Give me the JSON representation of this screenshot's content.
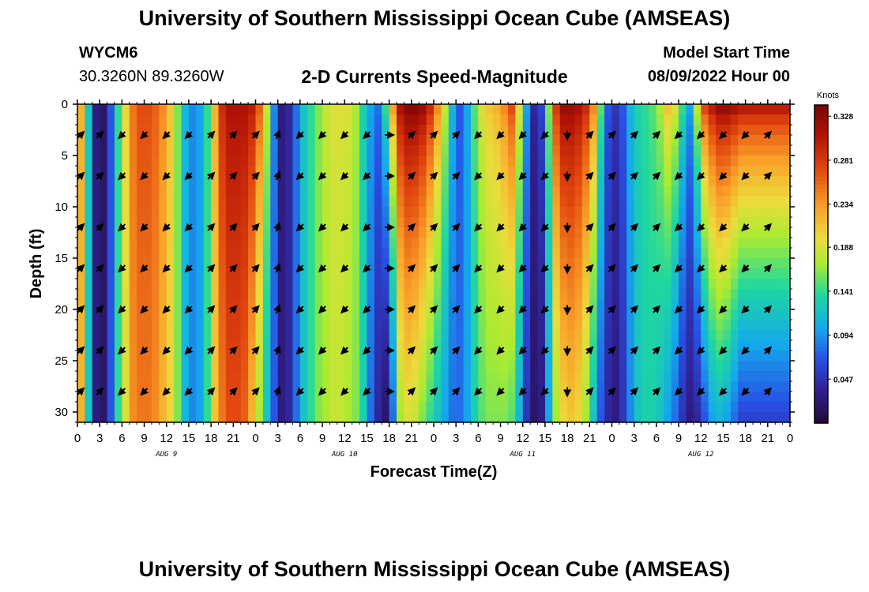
{
  "header": {
    "title": "University of Southern Mississippi Ocean Cube (AMSEAS)",
    "station": "WYCM6",
    "coords": "30.3260N  89.3260W",
    "subtitle": "2-D Currents Speed-Magnitude",
    "start_label": "Model Start Time",
    "start_value": "08/09/2022 Hour 00"
  },
  "footer": {
    "title": "University of Southern Mississippi Ocean Cube (AMSEAS)"
  },
  "chart_data": {
    "type": "heatmap",
    "title": "2-D Currents Speed-Magnitude",
    "xlabel": "Forecast Time(Z)",
    "ylabel": "Depth (ft)",
    "x_range_hours": [
      0,
      96
    ],
    "ylim": [
      0,
      31
    ],
    "x_tick_labels": [
      "0",
      "3",
      "6",
      "9",
      "12",
      "15",
      "18",
      "21",
      "0",
      "3",
      "6",
      "9",
      "12",
      "15",
      "18",
      "21",
      "0",
      "3",
      "6",
      "9",
      "12",
      "15",
      "18",
      "21",
      "0",
      "3",
      "6",
      "9",
      "12",
      "15",
      "18",
      "21",
      "0"
    ],
    "y_ticks": [
      0,
      5,
      10,
      15,
      20,
      25,
      30
    ],
    "y_tick_labels": [
      "0",
      "5",
      "10",
      "15",
      "20",
      "25",
      "30"
    ],
    "day_labels": [
      {
        "label": "AUG 9",
        "hour": 12
      },
      {
        "label": "AUG 10",
        "hour": 36
      },
      {
        "label": "AUG 11",
        "hour": 60
      },
      {
        "label": "AUG 12",
        "hour": 84
      }
    ],
    "colorbar": {
      "unit": "Knots",
      "min": 0.0,
      "max": 0.34,
      "ticks": [
        "0.328",
        "0.281",
        "0.234",
        "0.188",
        "0.141",
        "0.094",
        "0.047"
      ],
      "tick_values": [
        0.328,
        0.281,
        0.234,
        0.188,
        0.141,
        0.094,
        0.047
      ]
    },
    "speed_profile": [
      {
        "hour": 0,
        "surface": 0.22,
        "bottom": 0.22
      },
      {
        "hour": 1,
        "surface": 0.12,
        "bottom": 0.12
      },
      {
        "hour": 2,
        "surface": 0.03,
        "bottom": 0.03
      },
      {
        "hour": 3,
        "surface": 0.02,
        "bottom": 0.02
      },
      {
        "hour": 4,
        "surface": 0.07,
        "bottom": 0.07
      },
      {
        "hour": 5,
        "surface": 0.14,
        "bottom": 0.14
      },
      {
        "hour": 6,
        "surface": 0.2,
        "bottom": 0.19
      },
      {
        "hour": 7,
        "surface": 0.25,
        "bottom": 0.24
      },
      {
        "hour": 8,
        "surface": 0.27,
        "bottom": 0.25
      },
      {
        "hour": 9,
        "surface": 0.27,
        "bottom": 0.25
      },
      {
        "hour": 10,
        "surface": 0.26,
        "bottom": 0.24
      },
      {
        "hour": 11,
        "surface": 0.24,
        "bottom": 0.22
      },
      {
        "hour": 12,
        "surface": 0.21,
        "bottom": 0.2
      },
      {
        "hour": 13,
        "surface": 0.16,
        "bottom": 0.16
      },
      {
        "hour": 14,
        "surface": 0.11,
        "bottom": 0.11
      },
      {
        "hour": 15,
        "surface": 0.09,
        "bottom": 0.09
      },
      {
        "hour": 16,
        "surface": 0.1,
        "bottom": 0.1
      },
      {
        "hour": 17,
        "surface": 0.14,
        "bottom": 0.14
      },
      {
        "hour": 18,
        "surface": 0.22,
        "bottom": 0.21
      },
      {
        "hour": 19,
        "surface": 0.29,
        "bottom": 0.25
      },
      {
        "hour": 20,
        "surface": 0.31,
        "bottom": 0.27
      },
      {
        "hour": 21,
        "surface": 0.31,
        "bottom": 0.27
      },
      {
        "hour": 22,
        "surface": 0.31,
        "bottom": 0.26
      },
      {
        "hour": 23,
        "surface": 0.3,
        "bottom": 0.22
      },
      {
        "hour": 24,
        "surface": 0.26,
        "bottom": 0.17
      },
      {
        "hour": 25,
        "surface": 0.18,
        "bottom": 0.12
      },
      {
        "hour": 26,
        "surface": 0.09,
        "bottom": 0.07
      },
      {
        "hour": 27,
        "surface": 0.03,
        "bottom": 0.03
      },
      {
        "hour": 28,
        "surface": 0.04,
        "bottom": 0.04
      },
      {
        "hour": 29,
        "surface": 0.08,
        "bottom": 0.08
      },
      {
        "hour": 30,
        "surface": 0.12,
        "bottom": 0.12
      },
      {
        "hour": 31,
        "surface": 0.14,
        "bottom": 0.14
      },
      {
        "hour": 32,
        "surface": 0.16,
        "bottom": 0.16
      },
      {
        "hour": 33,
        "surface": 0.18,
        "bottom": 0.17
      },
      {
        "hour": 34,
        "surface": 0.19,
        "bottom": 0.18
      },
      {
        "hour": 35,
        "surface": 0.19,
        "bottom": 0.18
      },
      {
        "hour": 36,
        "surface": 0.19,
        "bottom": 0.17
      },
      {
        "hour": 37,
        "surface": 0.17,
        "bottom": 0.16
      },
      {
        "hour": 38,
        "surface": 0.13,
        "bottom": 0.13
      },
      {
        "hour": 39,
        "surface": 0.1,
        "bottom": 0.08
      },
      {
        "hour": 40,
        "surface": 0.08,
        "bottom": 0.04
      },
      {
        "hour": 41,
        "surface": 0.14,
        "bottom": 0.02
      },
      {
        "hour": 42,
        "surface": 0.23,
        "bottom": 0.08
      },
      {
        "hour": 43,
        "surface": 0.31,
        "bottom": 0.17
      },
      {
        "hour": 44,
        "surface": 0.33,
        "bottom": 0.19
      },
      {
        "hour": 45,
        "surface": 0.33,
        "bottom": 0.18
      },
      {
        "hour": 46,
        "surface": 0.32,
        "bottom": 0.16
      },
      {
        "hour": 47,
        "surface": 0.29,
        "bottom": 0.14
      },
      {
        "hour": 48,
        "surface": 0.24,
        "bottom": 0.12
      },
      {
        "hour": 49,
        "surface": 0.18,
        "bottom": 0.1
      },
      {
        "hour": 50,
        "surface": 0.11,
        "bottom": 0.08
      },
      {
        "hour": 51,
        "surface": 0.07,
        "bottom": 0.08
      },
      {
        "hour": 52,
        "surface": 0.1,
        "bottom": 0.1
      },
      {
        "hour": 53,
        "surface": 0.15,
        "bottom": 0.13
      },
      {
        "hour": 54,
        "surface": 0.19,
        "bottom": 0.15
      },
      {
        "hour": 55,
        "surface": 0.21,
        "bottom": 0.16
      },
      {
        "hour": 56,
        "surface": 0.22,
        "bottom": 0.16
      },
      {
        "hour": 57,
        "surface": 0.24,
        "bottom": 0.16
      },
      {
        "hour": 58,
        "surface": 0.27,
        "bottom": 0.15
      },
      {
        "hour": 59,
        "surface": 0.19,
        "bottom": 0.11
      },
      {
        "hour": 60,
        "surface": 0.1,
        "bottom": 0.05
      },
      {
        "hour": 61,
        "surface": 0.04,
        "bottom": 0.02
      },
      {
        "hour": 62,
        "surface": 0.06,
        "bottom": 0.03
      },
      {
        "hour": 63,
        "surface": 0.16,
        "bottom": 0.1
      },
      {
        "hour": 64,
        "surface": 0.28,
        "bottom": 0.17
      },
      {
        "hour": 65,
        "surface": 0.32,
        "bottom": 0.2
      },
      {
        "hour": 66,
        "surface": 0.32,
        "bottom": 0.21
      },
      {
        "hour": 67,
        "surface": 0.31,
        "bottom": 0.2
      },
      {
        "hour": 68,
        "surface": 0.29,
        "bottom": 0.17
      },
      {
        "hour": 69,
        "surface": 0.24,
        "bottom": 0.12
      },
      {
        "hour": 70,
        "surface": 0.15,
        "bottom": 0.07
      },
      {
        "hour": 71,
        "surface": 0.07,
        "bottom": 0.04
      },
      {
        "hour": 72,
        "surface": 0.05,
        "bottom": 0.03
      },
      {
        "hour": 73,
        "surface": 0.07,
        "bottom": 0.05
      },
      {
        "hour": 74,
        "surface": 0.11,
        "bottom": 0.09
      },
      {
        "hour": 75,
        "surface": 0.13,
        "bottom": 0.12
      },
      {
        "hour": 76,
        "surface": 0.14,
        "bottom": 0.13
      },
      {
        "hour": 77,
        "surface": 0.15,
        "bottom": 0.13
      },
      {
        "hour": 78,
        "surface": 0.17,
        "bottom": 0.12
      },
      {
        "hour": 79,
        "surface": 0.21,
        "bottom": 0.1
      },
      {
        "hour": 80,
        "surface": 0.19,
        "bottom": 0.08
      },
      {
        "hour": 81,
        "surface": 0.14,
        "bottom": 0.05
      },
      {
        "hour": 82,
        "surface": 0.1,
        "bottom": 0.03
      },
      {
        "hour": 83,
        "surface": 0.18,
        "bottom": 0.04
      },
      {
        "hour": 84,
        "surface": 0.27,
        "bottom": 0.07
      },
      {
        "hour": 85,
        "surface": 0.3,
        "bottom": 0.1
      },
      {
        "hour": 86,
        "surface": 0.32,
        "bottom": 0.11
      },
      {
        "hour": 87,
        "surface": 0.32,
        "bottom": 0.1
      },
      {
        "hour": 88,
        "surface": 0.31,
        "bottom": 0.08
      },
      {
        "hour": 89,
        "surface": 0.3,
        "bottom": 0.06
      }
    ],
    "vector_direction_deg": [
      {
        "hour": 0,
        "deg": 45
      },
      {
        "hour": 3,
        "deg": 45
      },
      {
        "hour": 6,
        "deg": 225
      },
      {
        "hour": 9,
        "deg": 225
      },
      {
        "hour": 12,
        "deg": 225
      },
      {
        "hour": 15,
        "deg": 225
      },
      {
        "hour": 18,
        "deg": 45
      },
      {
        "hour": 21,
        "deg": 45
      },
      {
        "hour": 24,
        "deg": 45
      },
      {
        "hour": 27,
        "deg": 20
      },
      {
        "hour": 30,
        "deg": 225
      },
      {
        "hour": 33,
        "deg": 225
      },
      {
        "hour": 36,
        "deg": 225
      },
      {
        "hour": 39,
        "deg": 225
      },
      {
        "hour": 42,
        "deg": 90
      },
      {
        "hour": 45,
        "deg": 45
      },
      {
        "hour": 48,
        "deg": 45
      },
      {
        "hour": 51,
        "deg": 45
      },
      {
        "hour": 54,
        "deg": 225
      },
      {
        "hour": 57,
        "deg": 225
      },
      {
        "hour": 60,
        "deg": 225
      },
      {
        "hour": 63,
        "deg": 225
      },
      {
        "hour": 66,
        "deg": 180
      },
      {
        "hour": 69,
        "deg": 45
      },
      {
        "hour": 72,
        "deg": 45
      },
      {
        "hour": 75,
        "deg": 45
      },
      {
        "hour": 78,
        "deg": 45
      },
      {
        "hour": 81,
        "deg": 225
      },
      {
        "hour": 84,
        "deg": 225
      },
      {
        "hour": 87,
        "deg": 225
      },
      {
        "hour": 90,
        "deg": 225
      },
      {
        "hour": 93,
        "deg": 45
      }
    ],
    "vector_depths": [
      3,
      7,
      12,
      16,
      20,
      24,
      28
    ]
  }
}
